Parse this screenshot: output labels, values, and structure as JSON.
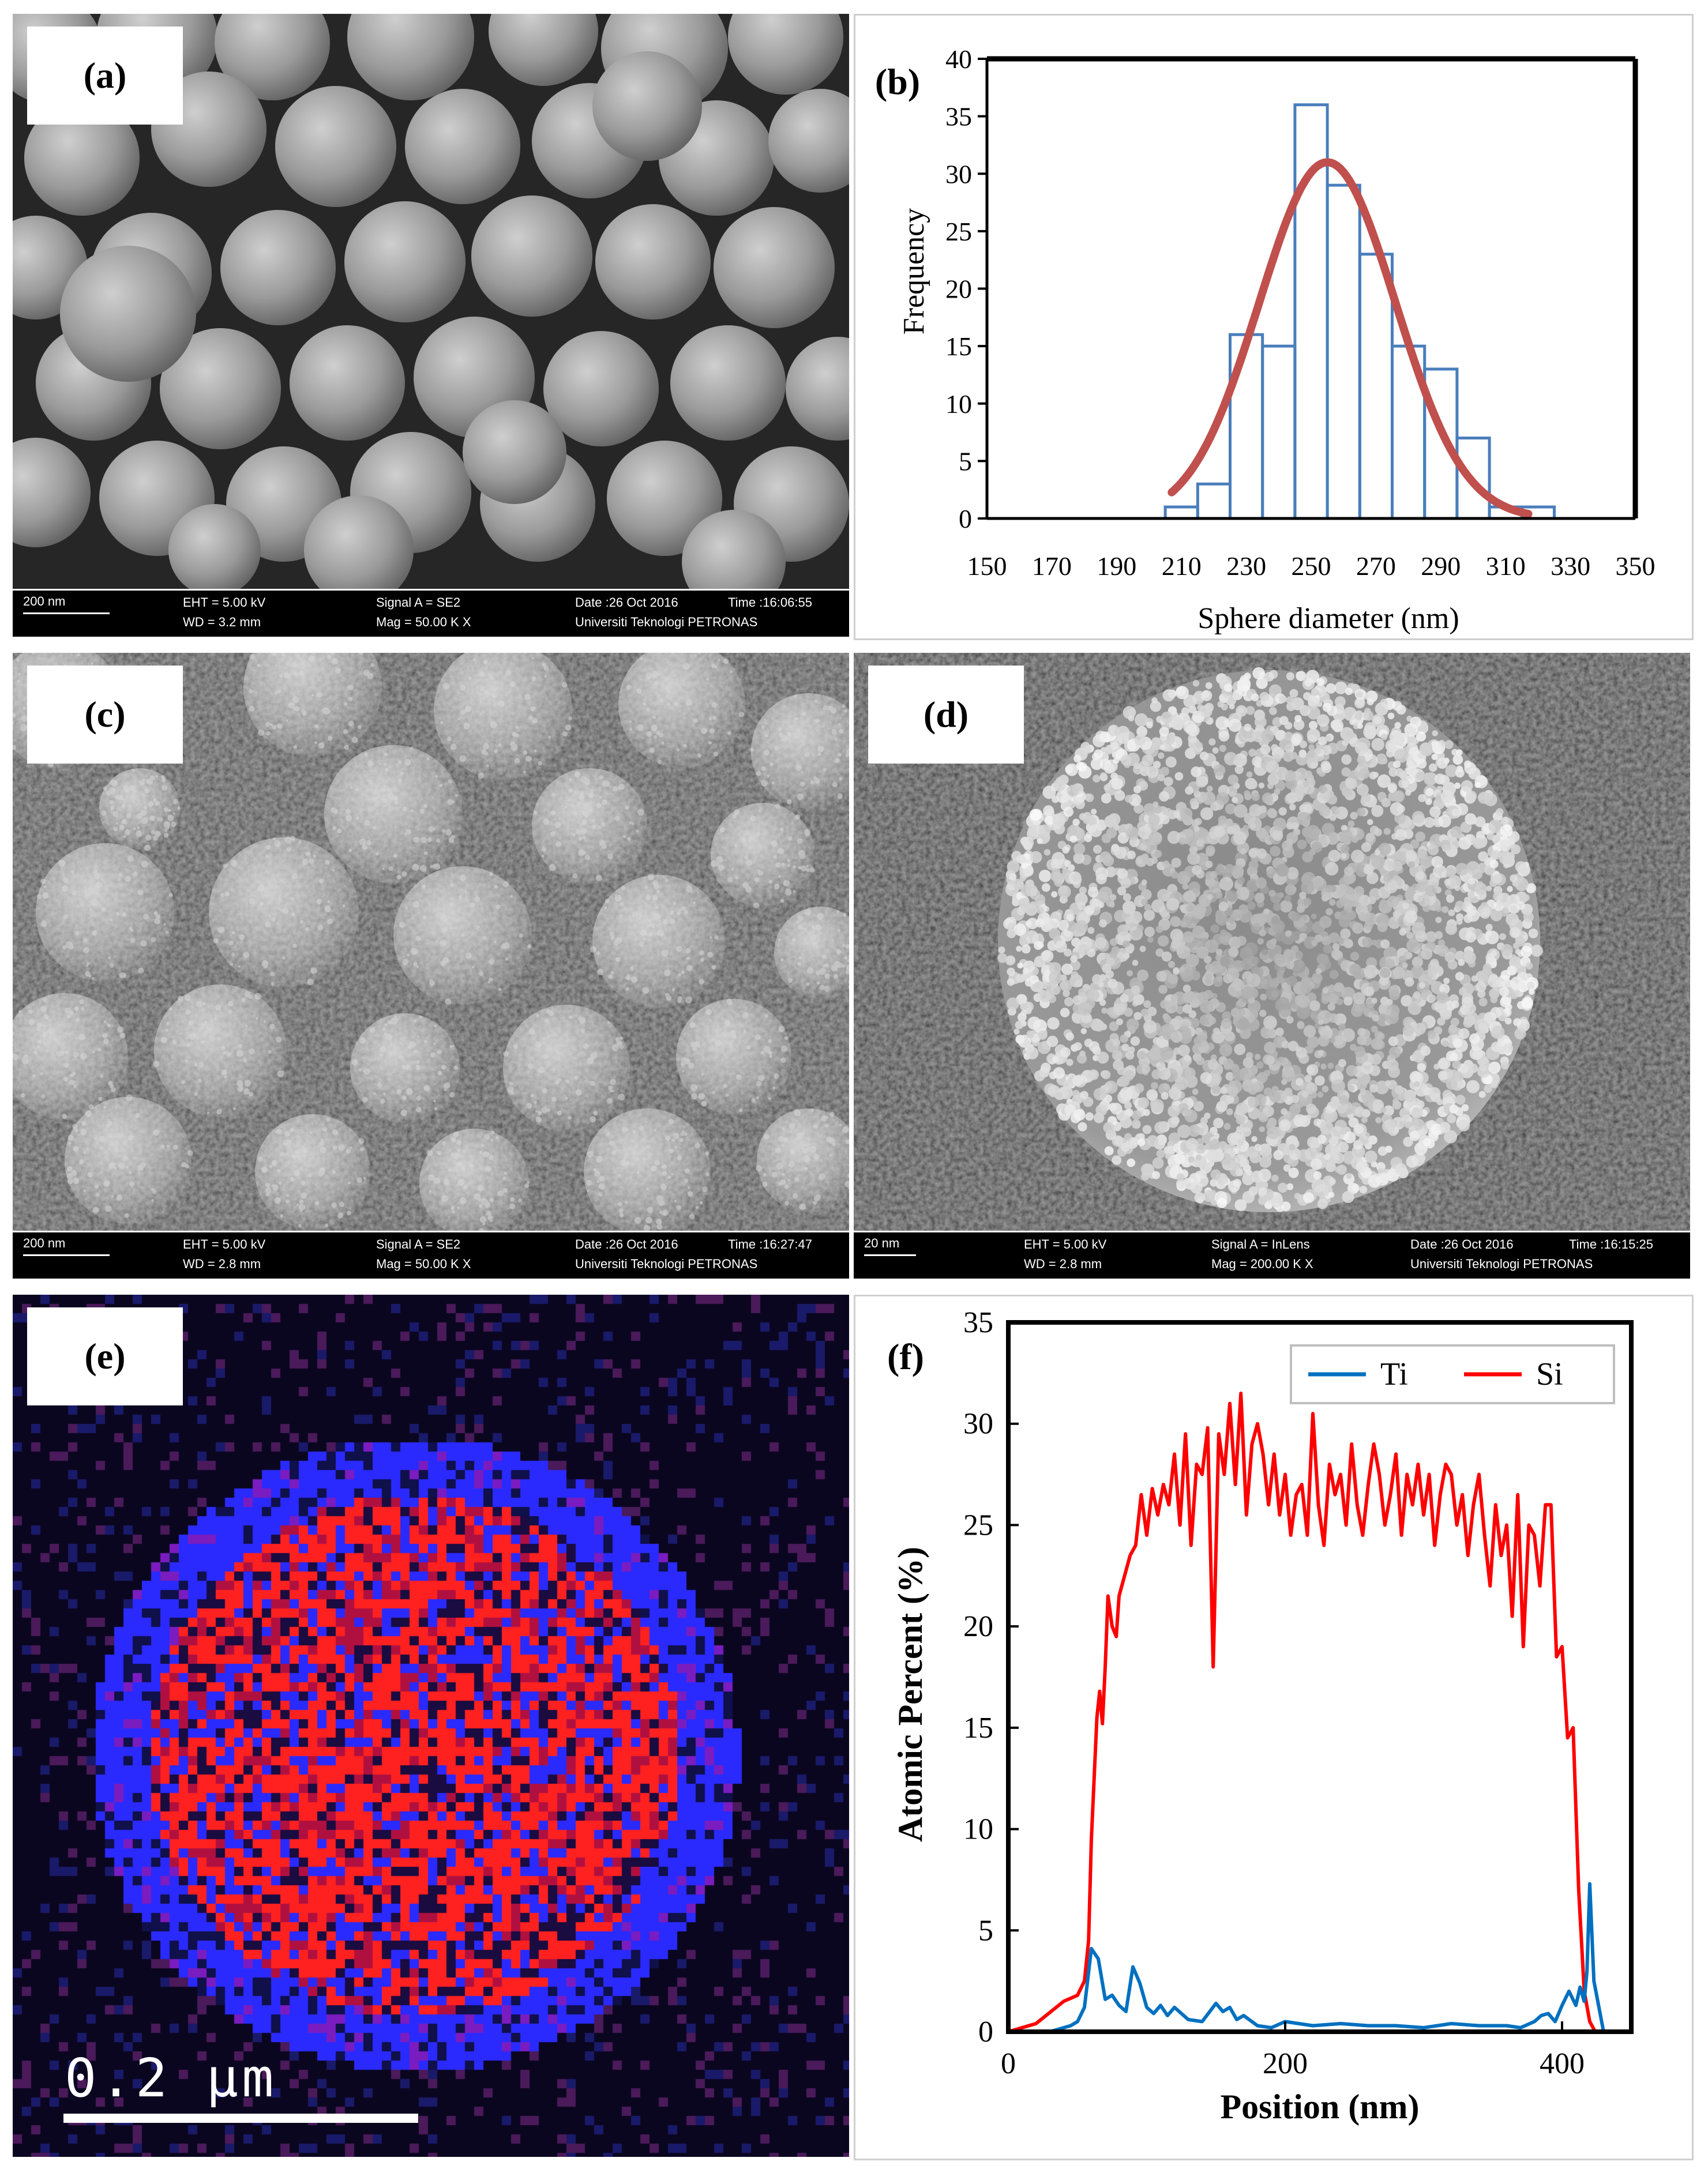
{
  "panels": {
    "a": {
      "label": "(a)",
      "databar": {
        "scale": "200 nm",
        "eht": "EHT = 5.00 kV",
        "wd": "WD = 3.2 mm",
        "signal": "Signal A = SE2",
        "mag": "Mag = 50.00 K X",
        "date": "Date :26 Oct 2016",
        "time": "Time :16:06:55",
        "org": "Universiti Teknologi PETRONAS"
      }
    },
    "b": {
      "label": "(b)"
    },
    "c": {
      "label": "(c)",
      "databar": {
        "scale": "200 nm",
        "eht": "EHT = 5.00 kV",
        "wd": "WD = 2.8 mm",
        "signal": "Signal A = SE2",
        "mag": "Mag = 50.00 K X",
        "date": "Date :26 Oct 2016",
        "time": "Time :16:27:47",
        "org": "Universiti Teknologi PETRONAS"
      }
    },
    "d": {
      "label": "(d)",
      "databar": {
        "scale": "20 nm",
        "eht": "EHT = 5.00 kV",
        "wd": "WD = 2.8 mm",
        "signal": "Signal A = InLens",
        "mag": "Mag = 200.00 K X",
        "date": "Date :26 Oct 2016",
        "time": "Time :16:15:25",
        "org": "Universiti Teknologi PETRONAS"
      }
    },
    "e": {
      "label": "(e)",
      "scalebar": "0.2 µm"
    },
    "f": {
      "label": "(f)"
    }
  },
  "colors": {
    "hist_bar": "#4a7ebb",
    "fit_curve": "#c0504d",
    "ti": "#0070c0",
    "si": "#ff0000",
    "map_si": "#ff2020",
    "map_ti": "#2a2aff"
  },
  "chart_data": [
    {
      "type": "bar",
      "panel": "b",
      "xlabel": "Sphere diameter (nm)",
      "ylabel": "Frequency",
      "xlim": [
        150,
        350
      ],
      "ylim": [
        0,
        40
      ],
      "x_ticks": [
        150,
        170,
        190,
        210,
        230,
        250,
        270,
        290,
        310,
        330,
        350
      ],
      "y_ticks": [
        0,
        5,
        10,
        15,
        20,
        25,
        30,
        35,
        40
      ],
      "bin_width": 10,
      "bins": [
        205,
        215,
        225,
        235,
        245,
        255,
        265,
        275,
        285,
        295,
        305,
        315
      ],
      "values": [
        1,
        3,
        16,
        15,
        36,
        29,
        23,
        15,
        13,
        7,
        1,
        1
      ],
      "fit": {
        "type": "normal",
        "mean": 255,
        "sd": 21,
        "peak": 31,
        "x_range": [
          207,
          317
        ]
      },
      "grid": false,
      "legend": "none"
    },
    {
      "type": "line",
      "panel": "f",
      "xlabel": "Position (nm)",
      "ylabel": "Atomic Percent (%)",
      "xlim": [
        0,
        450
      ],
      "ylim": [
        0,
        35
      ],
      "x_ticks": [
        0,
        200,
        400
      ],
      "y_ticks": [
        0,
        5,
        10,
        15,
        20,
        25,
        30,
        35
      ],
      "legend": "top-right",
      "grid": false,
      "series": [
        {
          "name": "Ti",
          "x": [
            0,
            30,
            45,
            50,
            55,
            60,
            65,
            70,
            75,
            80,
            85,
            90,
            95,
            100,
            105,
            110,
            115,
            120,
            130,
            140,
            150,
            155,
            160,
            165,
            170,
            180,
            190,
            200,
            220,
            240,
            260,
            280,
            300,
            320,
            340,
            360,
            370,
            380,
            385,
            390,
            395,
            400,
            405,
            410,
            413,
            416,
            418,
            420,
            423,
            430,
            450
          ],
          "y": [
            0,
            0,
            0.3,
            0.5,
            1.2,
            4.1,
            3.6,
            1.6,
            1.8,
            1.3,
            1.0,
            3.2,
            2.4,
            1.2,
            0.9,
            1.3,
            0.8,
            1.2,
            0.6,
            0.5,
            1.4,
            1.0,
            1.2,
            0.6,
            0.8,
            0.3,
            0.2,
            0.5,
            0.3,
            0.4,
            0.3,
            0.3,
            0.2,
            0.4,
            0.3,
            0.3,
            0.2,
            0.5,
            0.8,
            0.9,
            0.5,
            1.3,
            2.0,
            1.3,
            2.2,
            1.5,
            3.0,
            7.3,
            2.5,
            0,
            0
          ]
        },
        {
          "name": "Si",
          "x": [
            0,
            20,
            40,
            50,
            55,
            58,
            60,
            62,
            64,
            66,
            68,
            70,
            72,
            75,
            78,
            80,
            84,
            88,
            92,
            96,
            100,
            104,
            108,
            112,
            116,
            120,
            124,
            128,
            132,
            136,
            140,
            144,
            148,
            152,
            156,
            160,
            164,
            168,
            172,
            176,
            180,
            184,
            188,
            192,
            196,
            200,
            204,
            208,
            212,
            216,
            220,
            224,
            228,
            232,
            236,
            240,
            244,
            248,
            252,
            256,
            260,
            264,
            268,
            272,
            276,
            280,
            284,
            288,
            292,
            296,
            300,
            304,
            308,
            312,
            316,
            320,
            324,
            328,
            332,
            336,
            340,
            344,
            348,
            352,
            356,
            360,
            364,
            368,
            372,
            376,
            380,
            384,
            388,
            392,
            396,
            400,
            404,
            408,
            412,
            416,
            420,
            424,
            428,
            450
          ],
          "y": [
            0,
            0.4,
            1.5,
            1.8,
            2.5,
            4.5,
            9.5,
            12.5,
            15.5,
            16.8,
            15.2,
            18.0,
            21.5,
            20.0,
            19.5,
            21.5,
            22.5,
            23.5,
            24.0,
            26.5,
            24.5,
            26.8,
            25.5,
            27.0,
            26.0,
            28.5,
            25.0,
            29.5,
            24.0,
            28.0,
            27.5,
            29.8,
            18.0,
            29.5,
            27.5,
            31.0,
            27.0,
            31.5,
            25.5,
            29.0,
            30.0,
            28.5,
            26.0,
            28.5,
            25.5,
            27.5,
            24.5,
            26.5,
            27.0,
            24.5,
            30.5,
            26.0,
            24.0,
            28.0,
            26.5,
            27.5,
            25.0,
            29.0,
            26.0,
            24.5,
            27.0,
            29.0,
            27.5,
            25.0,
            26.5,
            28.5,
            24.5,
            27.5,
            26.0,
            28.0,
            25.5,
            27.5,
            24.0,
            26.5,
            28.0,
            27.5,
            25.0,
            26.5,
            23.5,
            26.0,
            27.5,
            24.5,
            22.0,
            26.0,
            23.5,
            25.0,
            20.5,
            26.5,
            19.0,
            25.0,
            24.5,
            22.0,
            26.0,
            26.0,
            18.5,
            19.0,
            14.5,
            15.0,
            7.0,
            2.0,
            0.5,
            0,
            0,
            0
          ]
        }
      ]
    }
  ]
}
